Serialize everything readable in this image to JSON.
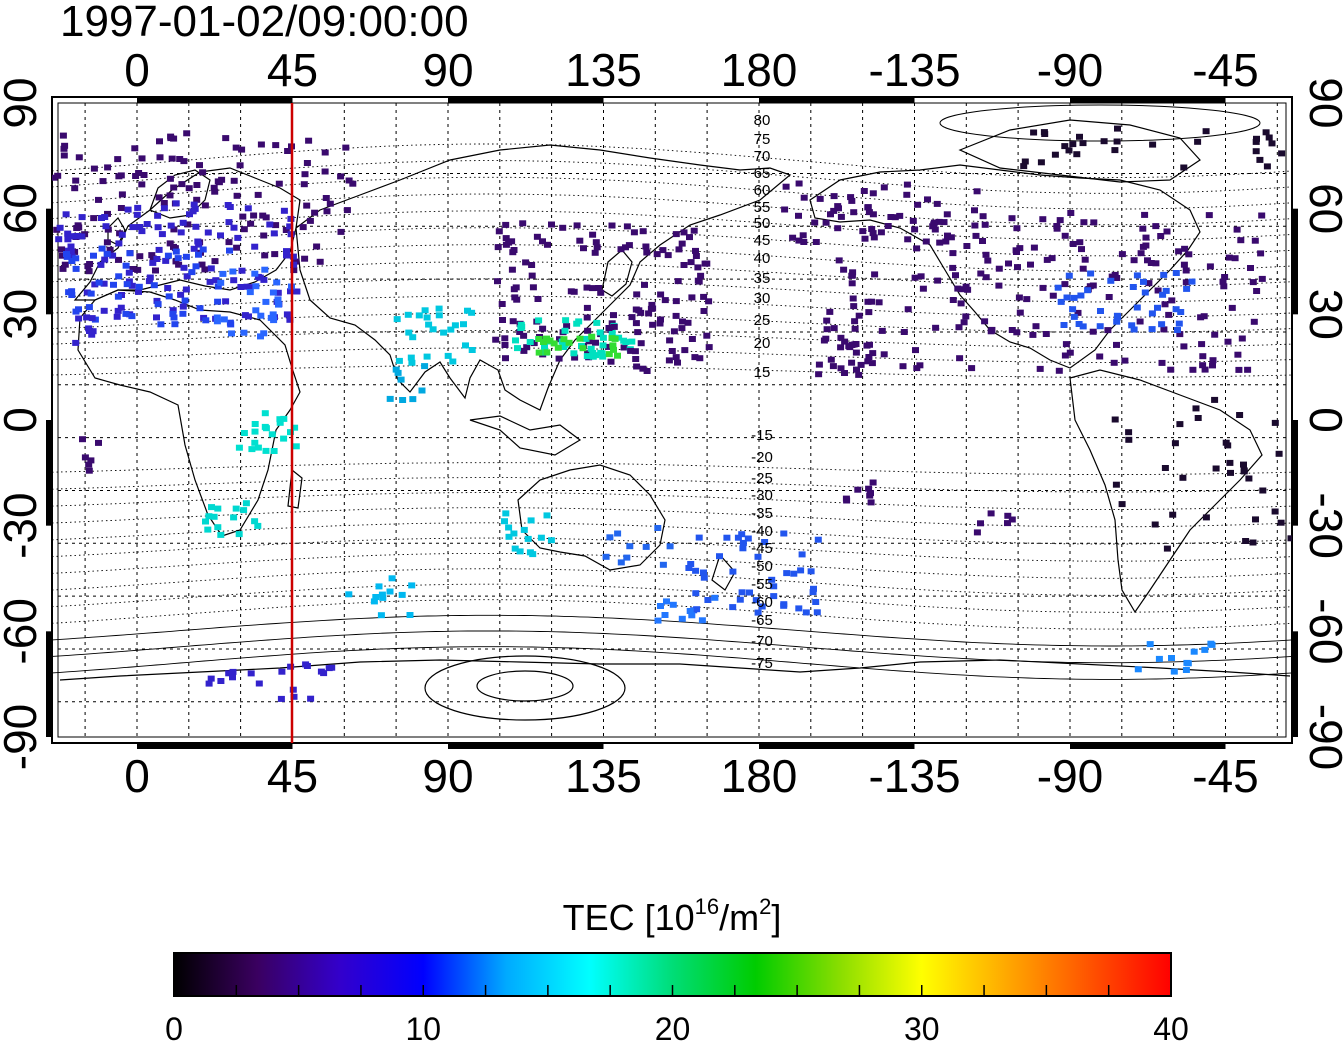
{
  "timestamp": "1997-01-02/09:00:00",
  "lon_ticks": [
    "0",
    "45",
    "90",
    "135",
    "180",
    "-135",
    "-90",
    "-45"
  ],
  "lat_ticks": [
    "90",
    "60",
    "30",
    "0",
    "-30",
    "-60",
    "-90"
  ],
  "contour_labels_north": [
    "80",
    "75",
    "70",
    "65",
    "60",
    "55",
    "50",
    "45",
    "40",
    "35",
    "30",
    "25",
    "20",
    "15"
  ],
  "contour_labels_south": [
    "-15",
    "-20",
    "-25",
    "-30",
    "-35",
    "-40",
    "-45",
    "-50",
    "-55",
    "-60",
    "-65",
    "-70",
    "-75"
  ],
  "colorbar": {
    "title_main": "TEC  [10",
    "title_exp1": "16",
    "title_mid": "/m",
    "title_exp2": "2",
    "title_end": "]",
    "tick_labels": [
      "0",
      "10",
      "20",
      "30",
      "40"
    ],
    "colors": [
      "#000000",
      "#3a0060",
      "#3300cc",
      "#0000ff",
      "#00aaff",
      "#00ffff",
      "#00dd77",
      "#00cc00",
      "#88dd00",
      "#ffff00",
      "#ffaa00",
      "#ff5500",
      "#ff0000"
    ]
  },
  "colors": {
    "meridian": "#cc0000",
    "low_tec": "#3a0a6e",
    "mid_tec": "#2244ee",
    "high_tec": "#00e0d0"
  }
}
